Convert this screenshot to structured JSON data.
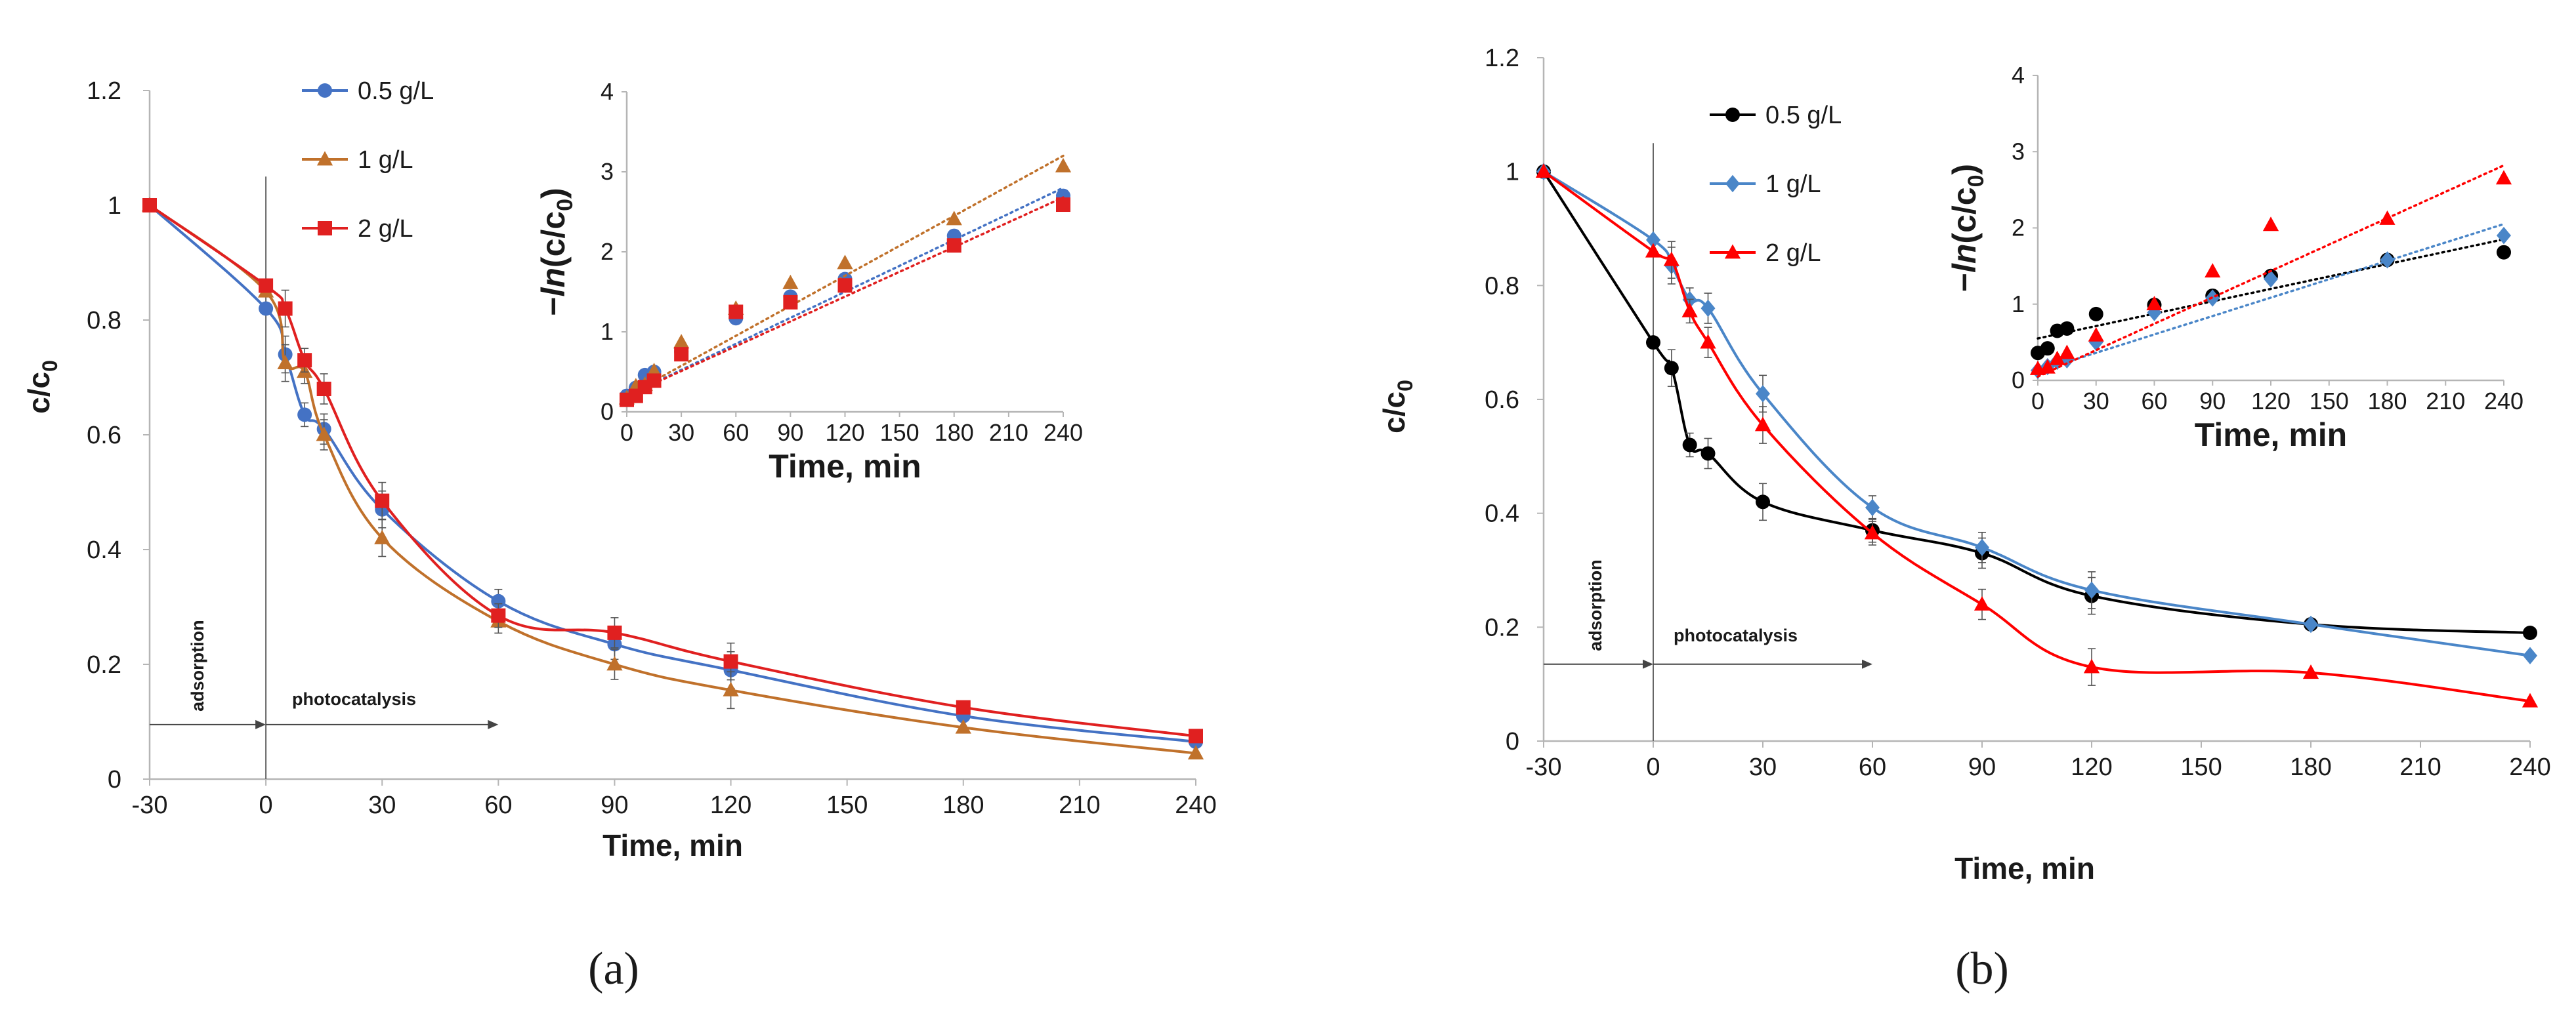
{
  "figure": {
    "panels": [
      {
        "label": "a",
        "label_display": "(a)"
      },
      {
        "label": "b",
        "label_display": "(b)"
      }
    ]
  },
  "chart_data": [
    {
      "type": "line",
      "panel": "(a)",
      "title": "",
      "xlabel": "Time, min",
      "ylabel": "c/c0",
      "xlim": [
        -30,
        240
      ],
      "ylim": [
        0,
        1.2
      ],
      "xticks": [
        -30,
        0,
        30,
        60,
        90,
        120,
        150,
        180,
        210,
        240
      ],
      "yticks": [
        0,
        0.2,
        0.4,
        0.6,
        0.8,
        1,
        1.2
      ],
      "annotations": [
        {
          "text": "adsorption",
          "x_from": -30,
          "x_to": 0,
          "y": 0.095
        },
        {
          "text": "photocatalysis",
          "x_from": 0,
          "x_to": 60,
          "y": 0.095
        }
      ],
      "legend": "top-left",
      "series": [
        {
          "name": "0.5 g/L",
          "color": "#4472c4",
          "marker": "circle",
          "x": [
            -30,
            0,
            5,
            10,
            15,
            30,
            60,
            90,
            120,
            180,
            240
          ],
          "y": [
            1.0,
            0.82,
            0.74,
            0.635,
            0.61,
            0.47,
            0.31,
            0.235,
            0.19,
            0.11,
            0.065
          ]
        },
        {
          "name": "1 g/L",
          "color": "#c0712b",
          "marker": "triangle",
          "x": [
            -30,
            0,
            5,
            10,
            15,
            30,
            60,
            90,
            120,
            180,
            240
          ],
          "y": [
            1.0,
            0.85,
            0.725,
            0.71,
            0.6,
            0.42,
            0.275,
            0.2,
            0.155,
            0.09,
            0.045
          ]
        },
        {
          "name": "2 g/L",
          "color": "#e02020",
          "marker": "square",
          "x": [
            -30,
            0,
            5,
            10,
            15,
            30,
            60,
            90,
            120,
            180,
            240
          ],
          "y": [
            1.0,
            0.86,
            0.82,
            0.73,
            0.68,
            0.485,
            0.285,
            0.255,
            0.205,
            0.125,
            0.075
          ]
        }
      ],
      "inset": {
        "type": "scatter",
        "xlabel": "Time, min",
        "ylabel": "-ln(c/c0)",
        "xlim": [
          0,
          240
        ],
        "ylim": [
          0,
          4
        ],
        "xticks": [
          0,
          30,
          60,
          90,
          120,
          150,
          180,
          210,
          240
        ],
        "yticks": [
          0,
          1,
          2,
          3,
          4
        ],
        "series": [
          {
            "name": "0.5 g/L",
            "color": "#4472c4",
            "marker": "circle",
            "x": [
              0,
              5,
              10,
              15,
              30,
              60,
              90,
              120,
              180,
              240
            ],
            "y": [
              0.2,
              0.3,
              0.46,
              0.5,
              0.75,
              1.17,
              1.44,
              1.66,
              2.2,
              2.7
            ],
            "fit": [
              0.2,
              2.8
            ]
          },
          {
            "name": "1 g/L",
            "color": "#c0712b",
            "marker": "triangle",
            "x": [
              0,
              5,
              10,
              15,
              30,
              60,
              90,
              120,
              180,
              240
            ],
            "y": [
              0.17,
              0.32,
              0.34,
              0.51,
              0.87,
              1.29,
              1.61,
              1.86,
              2.41,
              3.07
            ],
            "fit": [
              0.2,
              3.2
            ]
          },
          {
            "name": "2 g/L",
            "color": "#e02020",
            "marker": "square",
            "x": [
              0,
              5,
              10,
              15,
              30,
              60,
              90,
              120,
              180,
              240
            ],
            "y": [
              0.15,
              0.2,
              0.31,
              0.39,
              0.72,
              1.25,
              1.37,
              1.58,
              2.08,
              2.59
            ],
            "fit": [
              0.2,
              2.68
            ]
          }
        ]
      }
    },
    {
      "type": "line",
      "panel": "(b)",
      "title": "",
      "xlabel": "Time, min",
      "ylabel": "c/c0",
      "xlim": [
        -30,
        240
      ],
      "ylim": [
        0,
        1.2
      ],
      "xticks": [
        -30,
        0,
        30,
        60,
        90,
        120,
        150,
        180,
        210,
        240
      ],
      "yticks": [
        0,
        0.2,
        0.4,
        0.6,
        0.8,
        1,
        1.2
      ],
      "annotations": [
        {
          "text": "adsorption",
          "x_from": -30,
          "x_to": 0,
          "y": 0.135
        },
        {
          "text": "photocatalysis",
          "x_from": 0,
          "x_to": 60,
          "y": 0.135
        }
      ],
      "legend": "top-left",
      "series": [
        {
          "name": "0.5 g/L",
          "color": "#000000",
          "marker": "circle",
          "x": [
            -30,
            0,
            5,
            10,
            15,
            30,
            60,
            90,
            120,
            180,
            240
          ],
          "y": [
            1.0,
            0.7,
            0.655,
            0.52,
            0.505,
            0.42,
            0.37,
            0.33,
            0.255,
            0.205,
            0.19
          ]
        },
        {
          "name": "1 g/L",
          "color": "#4a86c8",
          "marker": "diamond",
          "x": [
            -30,
            0,
            5,
            10,
            15,
            30,
            60,
            90,
            120,
            180,
            240
          ],
          "y": [
            1.0,
            0.88,
            0.835,
            0.775,
            0.76,
            0.61,
            0.41,
            0.34,
            0.265,
            0.205,
            0.15
          ]
        },
        {
          "name": "2 g/L",
          "color": "#ff0000",
          "marker": "triangle",
          "x": [
            -30,
            0,
            5,
            10,
            15,
            30,
            60,
            90,
            120,
            180,
            240
          ],
          "y": [
            1.0,
            0.86,
            0.845,
            0.755,
            0.7,
            0.555,
            0.365,
            0.24,
            0.13,
            0.12,
            0.07
          ]
        }
      ],
      "inset": {
        "type": "scatter",
        "xlabel": "Time, min",
        "ylabel": "-ln(c/c0)",
        "xlim": [
          0,
          240
        ],
        "ylim": [
          0,
          4
        ],
        "xticks": [
          0,
          30,
          60,
          90,
          120,
          150,
          180,
          210,
          240
        ],
        "yticks": [
          0,
          1,
          2,
          3,
          4
        ],
        "series": [
          {
            "name": "0.5 g/L",
            "color": "#000000",
            "marker": "circle",
            "x": [
              0,
              5,
              10,
              15,
              30,
              60,
              90,
              120,
              180,
              240
            ],
            "y": [
              0.36,
              0.42,
              0.65,
              0.68,
              0.87,
              0.99,
              1.11,
              1.37,
              1.58,
              1.68
            ],
            "fit": [
              0.55,
              1.85
            ]
          },
          {
            "name": "1 g/L",
            "color": "#4a86c8",
            "marker": "diamond",
            "x": [
              0,
              5,
              10,
              15,
              30,
              60,
              90,
              120,
              180,
              240
            ],
            "y": [
              0.13,
              0.18,
              0.25,
              0.27,
              0.5,
              0.89,
              1.08,
              1.33,
              1.58,
              1.9
            ],
            "fit": [
              0.12,
              2.05
            ]
          },
          {
            "name": "2 g/L",
            "color": "#ff0000",
            "marker": "triangle",
            "x": [
              0,
              5,
              10,
              15,
              30,
              60,
              90,
              120,
              180,
              240
            ],
            "y": [
              0.15,
              0.17,
              0.28,
              0.36,
              0.59,
              1.0,
              1.43,
              2.04,
              2.12,
              2.65
            ],
            "fit": [
              0.05,
              2.82
            ]
          }
        ]
      }
    }
  ]
}
